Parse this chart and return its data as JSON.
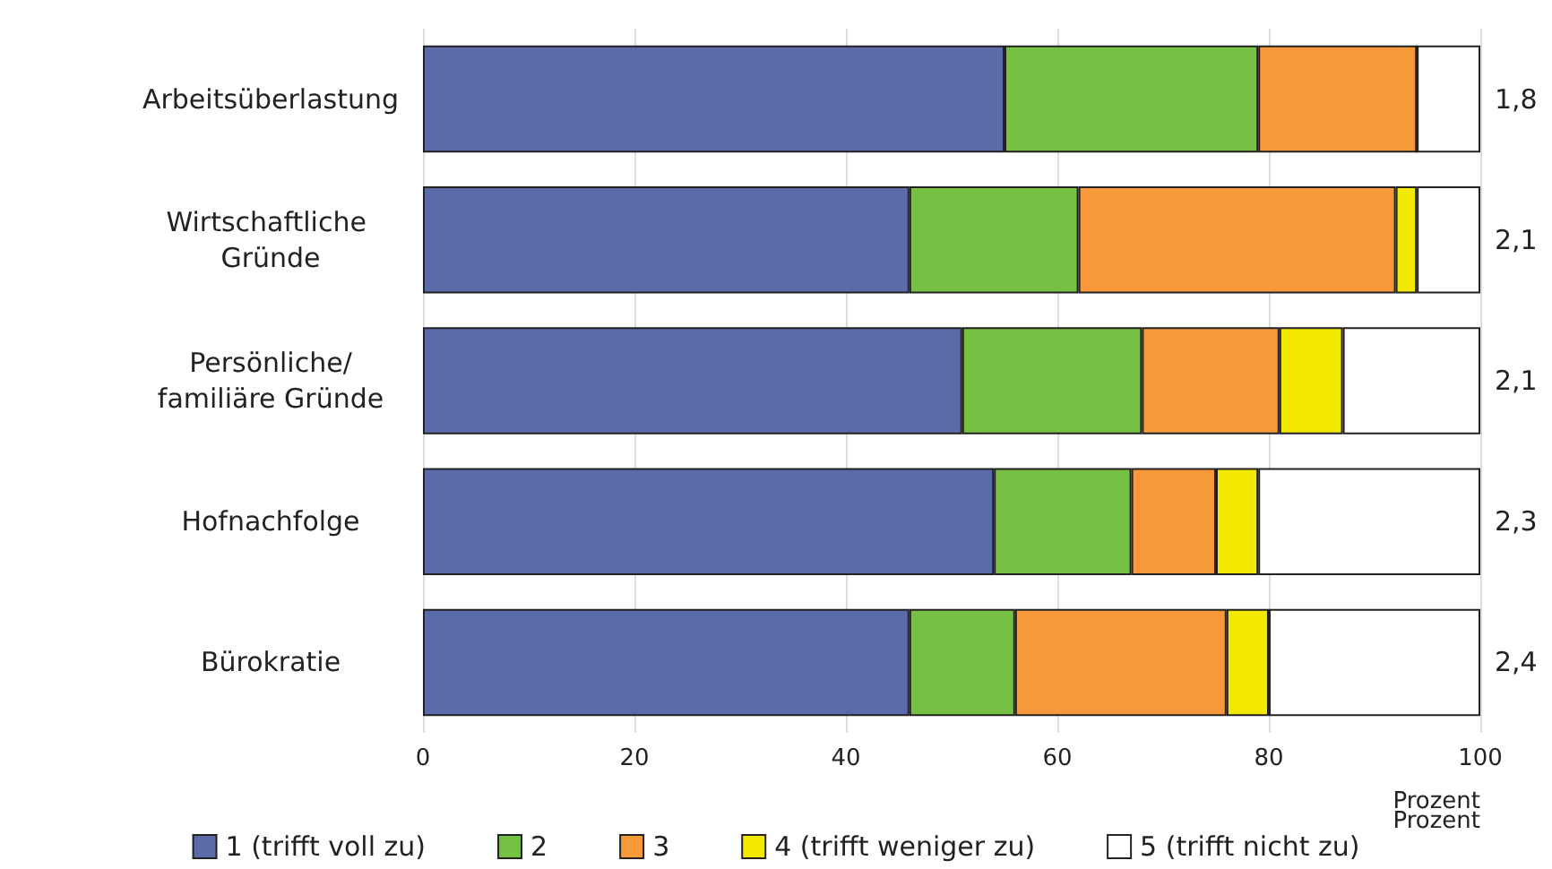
{
  "chart_data": {
    "type": "bar",
    "orientation": "horizontal",
    "stacked": true,
    "categories": [
      "Arbeitsüberlastung",
      "Wirtschaftliche Gründe",
      "Persönliche/familiäre Gründe",
      "Hofnachfolge",
      "Bürokratie"
    ],
    "series": [
      {
        "name": "1 (trifft voll zu)",
        "color": "#5b6aa8",
        "values": [
          55,
          46,
          51,
          54,
          46
        ]
      },
      {
        "name": "2",
        "color": "#76c043",
        "values": [
          24,
          16,
          17,
          13,
          10
        ]
      },
      {
        "name": "3",
        "color": "#f7983a",
        "values": [
          15,
          30,
          13,
          8,
          20
        ]
      },
      {
        "name": "4 (trifft weniger zu)",
        "color": "#f2e800",
        "values": [
          0,
          2,
          6,
          4,
          4
        ]
      },
      {
        "name": "5 (trifft nicht zu)",
        "color": "#ffffff",
        "values": [
          6,
          6,
          13,
          21,
          20
        ]
      }
    ],
    "xlabel": "Prozent",
    "xlim": [
      0,
      100
    ],
    "xticks": [
      0,
      20,
      40,
      60,
      80,
      100
    ],
    "grid": "x",
    "legend": "bottom",
    "annotations": [
      "1,8",
      "2,1",
      "2,1",
      "2,3",
      "2,4",
      "Prozent"
    ]
  }
}
